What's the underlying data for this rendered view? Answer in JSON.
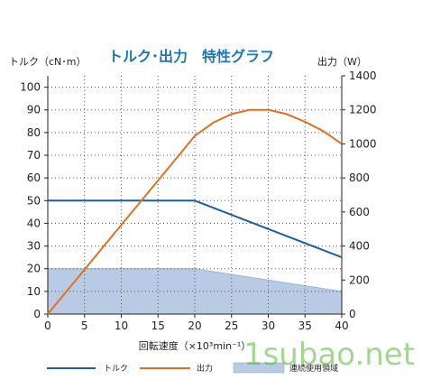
{
  "chart_data": {
    "type": "line",
    "title": "トルク･出力　特性グラフ",
    "xlabel": "回転速度（×10³min⁻¹）",
    "ylabel_left": "トルク（cN･m）",
    "ylabel_right": "出力（W）",
    "xlim": [
      0,
      40
    ],
    "ylim_left": [
      0,
      105
    ],
    "ylim_right": [
      0,
      1400
    ],
    "x_ticks": [
      0,
      5,
      10,
      15,
      20,
      25,
      30,
      35,
      40
    ],
    "y_left_ticks": [
      0,
      10,
      20,
      30,
      40,
      50,
      60,
      70,
      80,
      90,
      100
    ],
    "y_right_ticks": [
      0,
      200,
      400,
      600,
      800,
      1000,
      1200,
      1400
    ],
    "grid": true,
    "legend_position": "bottom",
    "series": [
      {
        "name": "トルク",
        "axis": "left",
        "color": "#1a5f99",
        "x": [
          0,
          20,
          40
        ],
        "values": [
          50,
          50,
          25
        ]
      },
      {
        "name": "出力",
        "axis": "right",
        "color": "#e07020",
        "x": [
          0,
          5,
          10,
          15,
          20,
          22.5,
          25,
          27.5,
          30,
          32.5,
          35,
          37.5,
          40
        ],
        "values": [
          0,
          262,
          524,
          785,
          1047,
          1125,
          1175,
          1200,
          1200,
          1175,
          1130,
          1075,
          1000
        ]
      }
    ],
    "area": {
      "name": "連続使用領域",
      "axis": "left",
      "color": "#b9cbe4",
      "x": [
        0,
        20,
        40
      ],
      "values": [
        20,
        20,
        10
      ]
    }
  },
  "watermark": "1subao.net"
}
